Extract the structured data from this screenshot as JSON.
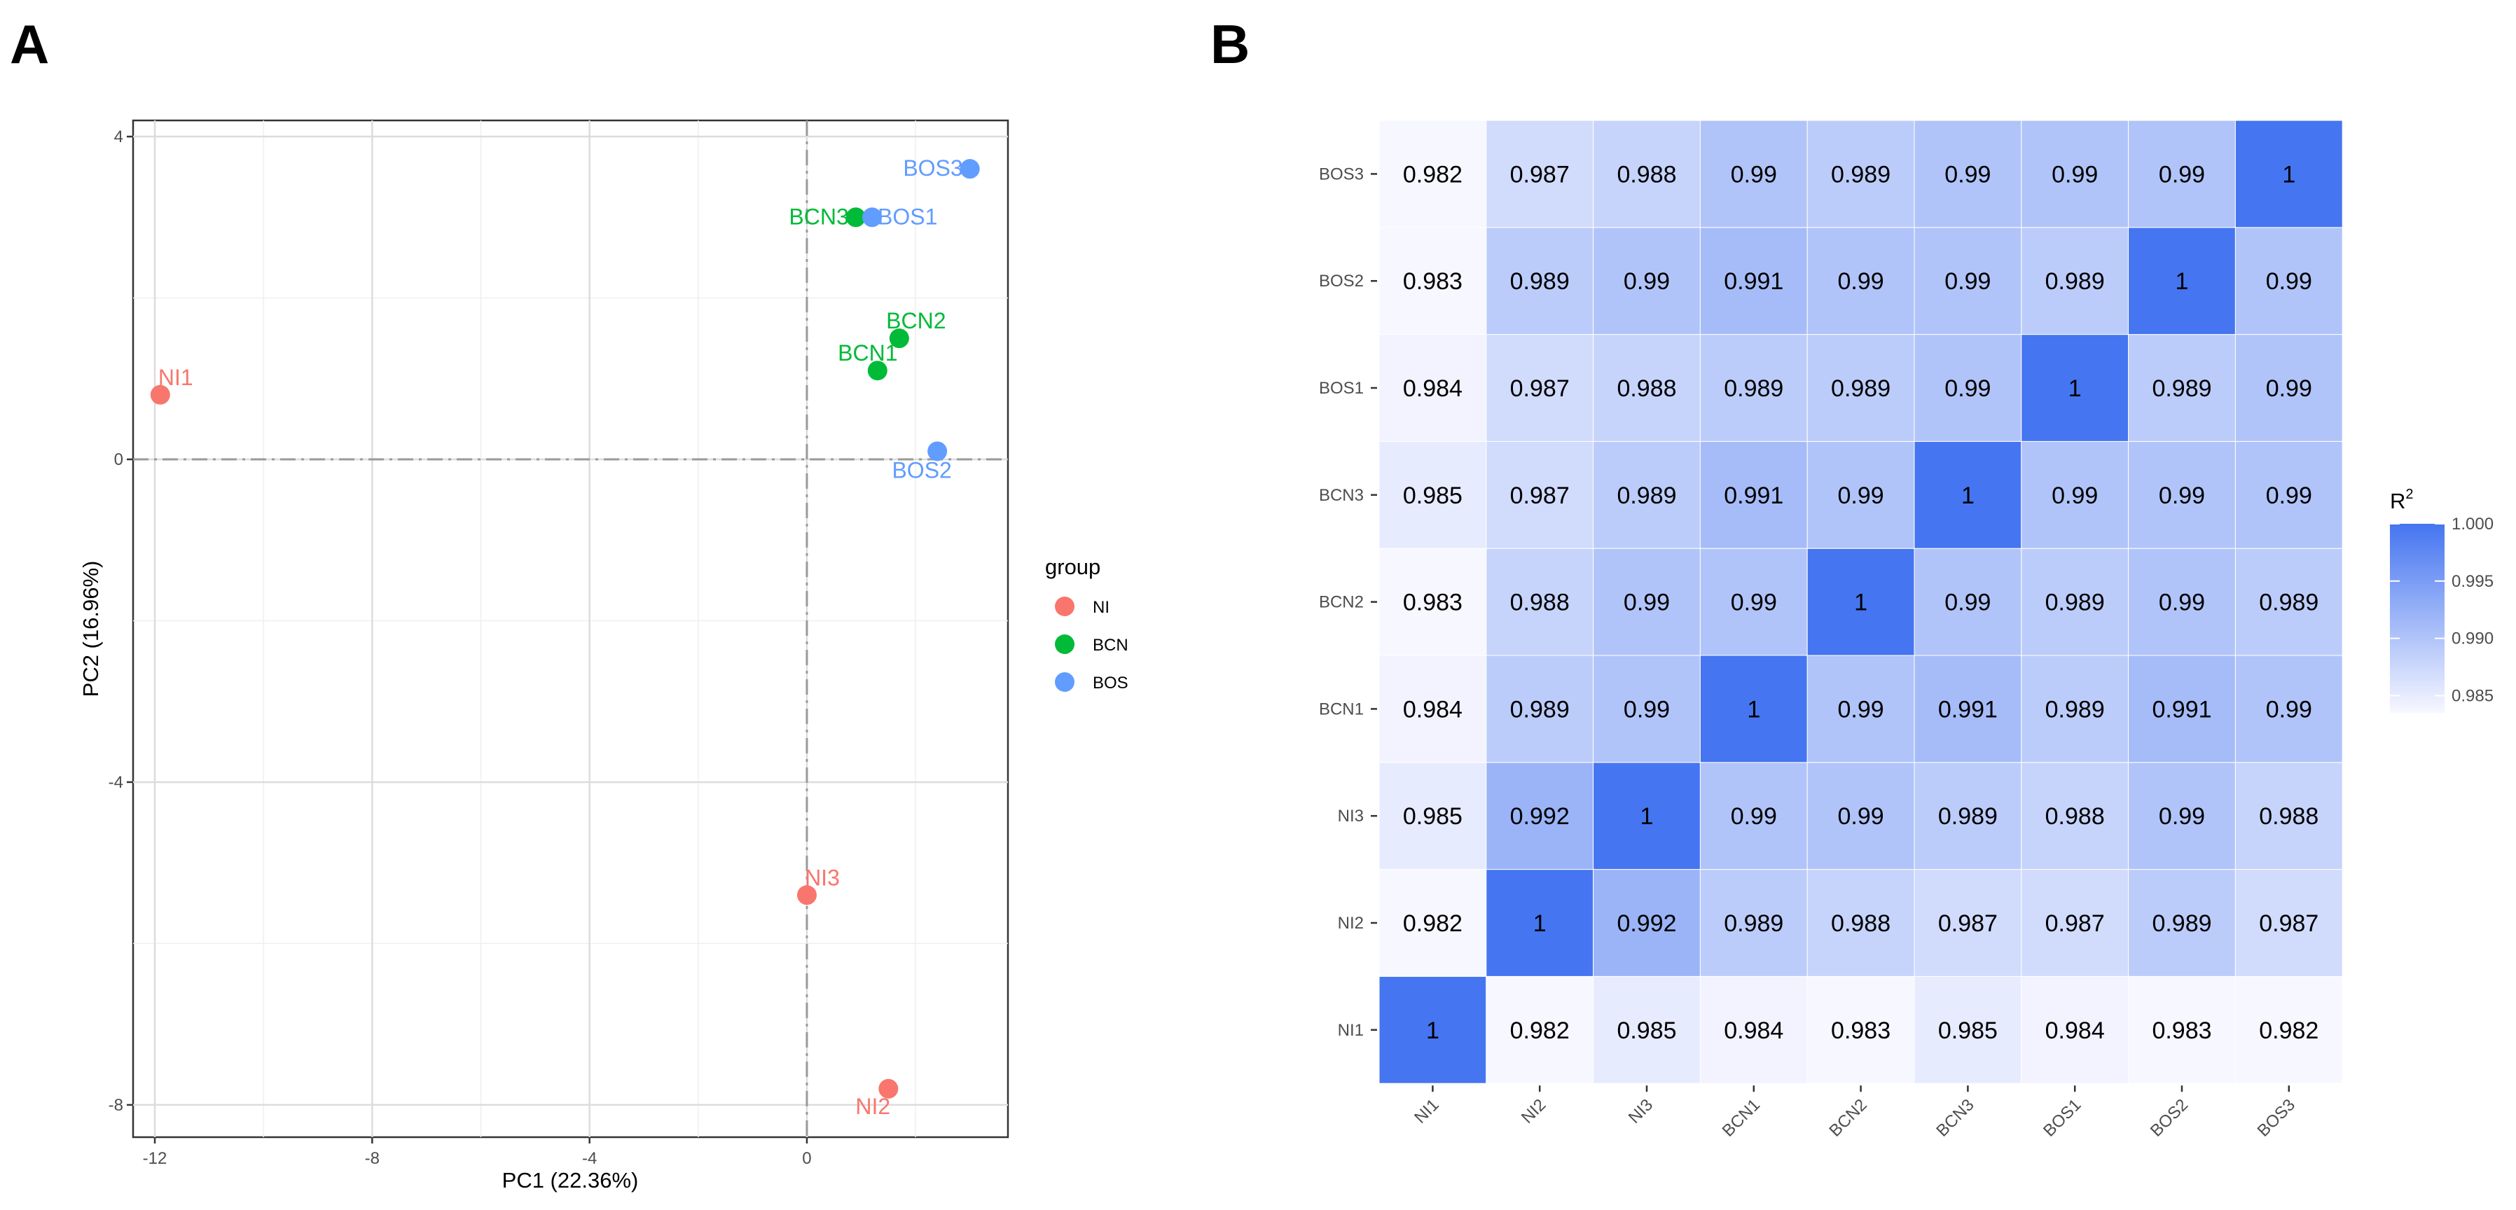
{
  "panels": {
    "a_label": "A",
    "b_label": "B"
  },
  "colors": {
    "NI": "#F8766D",
    "BCN": "#00BA38",
    "BOS": "#619CFF",
    "heat_high": "#4575F0",
    "heat_low": "#F7F7FF"
  },
  "chart_data": [
    {
      "type": "scatter",
      "title": "",
      "xlabel": "PC1 (22.36%)",
      "ylabel": "PC2 (16.96%)",
      "xlim": [
        -12.4,
        3.7
      ],
      "ylim": [
        -8.4,
        4.2
      ],
      "x_ticks": [
        -12,
        -8,
        -4,
        0
      ],
      "x_tick_labels": [
        "-12",
        "-8",
        "-4",
        "0"
      ],
      "y_ticks": [
        -8,
        -4,
        0,
        4
      ],
      "y_tick_labels": [
        "-8",
        "-4",
        "0",
        "4"
      ],
      "grid": true,
      "reference_lines": {
        "x": 0,
        "y": 0
      },
      "legend": {
        "title": "group",
        "position": "right",
        "entries": [
          "NI",
          "BCN",
          "BOS"
        ]
      },
      "points": [
        {
          "label": "NI1",
          "group": "NI",
          "x": -11.9,
          "y": 0.8
        },
        {
          "label": "NI2",
          "group": "NI",
          "x": 1.5,
          "y": -7.8
        },
        {
          "label": "NI3",
          "group": "NI",
          "x": 0.0,
          "y": -5.4
        },
        {
          "label": "BCN1",
          "group": "BCN",
          "x": 1.3,
          "y": 1.1
        },
        {
          "label": "BCN2",
          "group": "BCN",
          "x": 1.7,
          "y": 1.5
        },
        {
          "label": "BCN3",
          "group": "BCN",
          "x": 0.9,
          "y": 3.0
        },
        {
          "label": "BOS1",
          "group": "BOS",
          "x": 1.2,
          "y": 3.0
        },
        {
          "label": "BOS2",
          "group": "BOS",
          "x": 2.4,
          "y": 0.1
        },
        {
          "label": "BOS3",
          "group": "BOS",
          "x": 3.0,
          "y": 3.6
        }
      ]
    },
    {
      "type": "heatmap",
      "title": "",
      "x_categories": [
        "NI1",
        "NI2",
        "NI3",
        "BCN1",
        "BCN2",
        "BCN3",
        "BOS1",
        "BOS2",
        "BOS3"
      ],
      "y_categories": [
        "NI1",
        "NI2",
        "NI3",
        "BCN1",
        "BCN2",
        "BCN3",
        "BOS1",
        "BOS2",
        "BOS3"
      ],
      "values": [
        [
          "1",
          "0.982",
          "0.985",
          "0.984",
          "0.983",
          "0.985",
          "0.984",
          "0.983",
          "0.982"
        ],
        [
          "0.982",
          "1",
          "0.992",
          "0.989",
          "0.988",
          "0.987",
          "0.987",
          "0.989",
          "0.987"
        ],
        [
          "0.985",
          "0.992",
          "1",
          "0.99",
          "0.99",
          "0.989",
          "0.988",
          "0.99",
          "0.988"
        ],
        [
          "0.984",
          "0.989",
          "0.99",
          "1",
          "0.99",
          "0.991",
          "0.989",
          "0.991",
          "0.99"
        ],
        [
          "0.983",
          "0.988",
          "0.99",
          "0.99",
          "1",
          "0.99",
          "0.989",
          "0.99",
          "0.989"
        ],
        [
          "0.985",
          "0.987",
          "0.989",
          "0.991",
          "0.99",
          "1",
          "0.99",
          "0.99",
          "0.99"
        ],
        [
          "0.984",
          "0.987",
          "0.988",
          "0.989",
          "0.989",
          "0.99",
          "1",
          "0.989",
          "0.99"
        ],
        [
          "0.983",
          "0.989",
          "0.99",
          "0.991",
          "0.99",
          "0.99",
          "0.989",
          "1",
          "0.99"
        ],
        [
          "0.982",
          "0.987",
          "0.988",
          "0.99",
          "0.989",
          "0.99",
          "0.99",
          "0.99",
          "1"
        ]
      ],
      "colorbar": {
        "title": "R",
        "title_superscript": "2",
        "range": [
          0.9835,
          1.0
        ],
        "ticks": [
          0.985,
          0.99,
          0.995,
          1.0
        ],
        "tick_labels": [
          "0.985",
          "0.990",
          "0.995",
          "1.000"
        ]
      }
    }
  ]
}
